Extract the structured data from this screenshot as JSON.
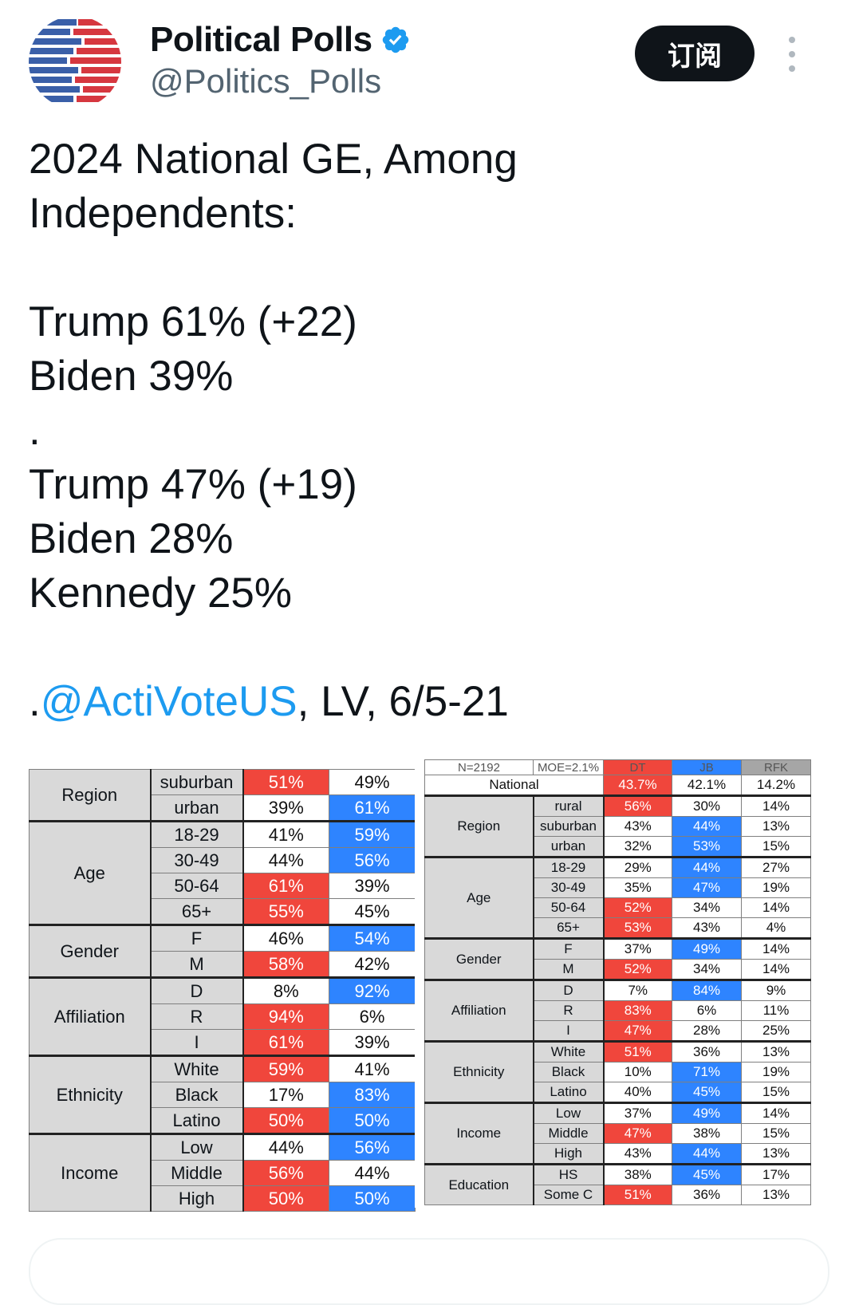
{
  "account": {
    "display_name": "Political Polls",
    "handle": "@Politics_Polls",
    "verified": "verified-badge-icon",
    "subscribe_label": "订阅"
  },
  "tweet": {
    "lines": [
      "2024 National GE, Among",
      "Independents:",
      "",
      "Trump 61% (+22)",
      "Biden 39%",
      ".",
      "Trump 47% (+19)",
      "Biden 28%",
      "Kennedy 25%",
      ""
    ],
    "source_prefix": ".",
    "source_mention": "@ActiVoteUS",
    "source_suffix": ", LV, 6/5-21"
  },
  "colors": {
    "trump_red": "#f0463c",
    "biden_blue": "#2e84ff",
    "kennedy_gray": "#a6a6a6",
    "mention_blue": "#1d9bf0"
  },
  "left_table": {
    "groups": [
      {
        "group": "Region",
        "rows": [
          {
            "label": "suburban",
            "t": "51%",
            "b": "49%",
            "lead": "t"
          },
          {
            "label": "urban",
            "t": "39%",
            "b": "61%",
            "lead": "b"
          }
        ]
      },
      {
        "group": "Age",
        "rows": [
          {
            "label": "18-29",
            "t": "41%",
            "b": "59%",
            "lead": "b"
          },
          {
            "label": "30-49",
            "t": "44%",
            "b": "56%",
            "lead": "b"
          },
          {
            "label": "50-64",
            "t": "61%",
            "b": "39%",
            "lead": "t"
          },
          {
            "label": "65+",
            "t": "55%",
            "b": "45%",
            "lead": "t"
          }
        ]
      },
      {
        "group": "Gender",
        "rows": [
          {
            "label": "F",
            "t": "46%",
            "b": "54%",
            "lead": "b"
          },
          {
            "label": "M",
            "t": "58%",
            "b": "42%",
            "lead": "t"
          }
        ]
      },
      {
        "group": "Affiliation",
        "rows": [
          {
            "label": "D",
            "t": "8%",
            "b": "92%",
            "lead": "b"
          },
          {
            "label": "R",
            "t": "94%",
            "b": "6%",
            "lead": "t"
          },
          {
            "label": "I",
            "t": "61%",
            "b": "39%",
            "lead": "t"
          }
        ]
      },
      {
        "group": "Ethnicity",
        "rows": [
          {
            "label": "White",
            "t": "59%",
            "b": "41%",
            "lead": "t"
          },
          {
            "label": "Black",
            "t": "17%",
            "b": "83%",
            "lead": "b"
          },
          {
            "label": "Latino",
            "t": "50%",
            "b": "50%",
            "lead": "tb"
          }
        ]
      },
      {
        "group": "Income",
        "rows": [
          {
            "label": "Low",
            "t": "44%",
            "b": "56%",
            "lead": "b"
          },
          {
            "label": "Middle",
            "t": "56%",
            "b": "44%",
            "lead": "t"
          },
          {
            "label": "High",
            "t": "50%",
            "b": "50%",
            "lead": "tb"
          }
        ]
      }
    ]
  },
  "right_table": {
    "header": [
      "N=2192",
      "MOE=2.1%",
      "DT",
      "JB",
      "RFK"
    ],
    "national": {
      "label": "National",
      "t": "43.7%",
      "b": "42.1%",
      "k": "14.2%",
      "lead": "t"
    },
    "groups": [
      {
        "group": "Region",
        "rows": [
          {
            "label": "rural",
            "t": "56%",
            "b": "30%",
            "k": "14%",
            "lead": "t"
          },
          {
            "label": "suburban",
            "t": "43%",
            "b": "44%",
            "k": "13%",
            "lead": "b"
          },
          {
            "label": "urban",
            "t": "32%",
            "b": "53%",
            "k": "15%",
            "lead": "b"
          }
        ]
      },
      {
        "group": "Age",
        "rows": [
          {
            "label": "18-29",
            "t": "29%",
            "b": "44%",
            "k": "27%",
            "lead": "b"
          },
          {
            "label": "30-49",
            "t": "35%",
            "b": "47%",
            "k": "19%",
            "lead": "b"
          },
          {
            "label": "50-64",
            "t": "52%",
            "b": "34%",
            "k": "14%",
            "lead": "t"
          },
          {
            "label": "65+",
            "t": "53%",
            "b": "43%",
            "k": "4%",
            "lead": "t"
          }
        ]
      },
      {
        "group": "Gender",
        "rows": [
          {
            "label": "F",
            "t": "37%",
            "b": "49%",
            "k": "14%",
            "lead": "b"
          },
          {
            "label": "M",
            "t": "52%",
            "b": "34%",
            "k": "14%",
            "lead": "t"
          }
        ]
      },
      {
        "group": "Affiliation",
        "rows": [
          {
            "label": "D",
            "t": "7%",
            "b": "84%",
            "k": "9%",
            "lead": "b"
          },
          {
            "label": "R",
            "t": "83%",
            "b": "6%",
            "k": "11%",
            "lead": "t"
          },
          {
            "label": "I",
            "t": "47%",
            "b": "28%",
            "k": "25%",
            "lead": "t"
          }
        ]
      },
      {
        "group": "Ethnicity",
        "rows": [
          {
            "label": "White",
            "t": "51%",
            "b": "36%",
            "k": "13%",
            "lead": "t"
          },
          {
            "label": "Black",
            "t": "10%",
            "b": "71%",
            "k": "19%",
            "lead": "b"
          },
          {
            "label": "Latino",
            "t": "40%",
            "b": "45%",
            "k": "15%",
            "lead": "b"
          }
        ]
      },
      {
        "group": "Income",
        "rows": [
          {
            "label": "Low",
            "t": "37%",
            "b": "49%",
            "k": "14%",
            "lead": "b"
          },
          {
            "label": "Middle",
            "t": "47%",
            "b": "38%",
            "k": "15%",
            "lead": "t"
          },
          {
            "label": "High",
            "t": "43%",
            "b": "44%",
            "k": "13%",
            "lead": "b"
          }
        ]
      },
      {
        "group": "Education",
        "rows": [
          {
            "label": "HS",
            "t": "38%",
            "b": "45%",
            "k": "17%",
            "lead": "b"
          },
          {
            "label": "Some C",
            "t": "51%",
            "b": "36%",
            "k": "13%",
            "lead": "t"
          }
        ]
      }
    ]
  }
}
